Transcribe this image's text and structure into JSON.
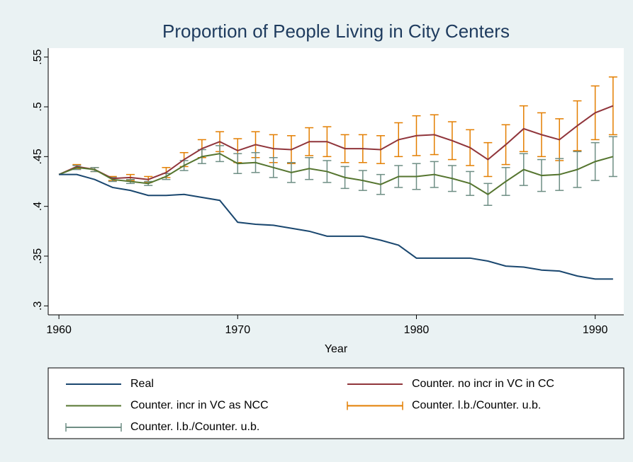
{
  "chart_data": {
    "type": "line",
    "title": "Proportion of People Living in City Centers",
    "x_label": "Year",
    "x": [
      1960,
      1961,
      1962,
      1963,
      1964,
      1965,
      1966,
      1967,
      1968,
      1969,
      1970,
      1971,
      1972,
      1973,
      1974,
      1975,
      1976,
      1977,
      1978,
      1979,
      1980,
      1981,
      1982,
      1983,
      1984,
      1985,
      1986,
      1987,
      1988,
      1989,
      1990,
      1991
    ],
    "xlim": [
      1959.4,
      1991.6
    ],
    "xticks": [
      1960,
      1970,
      1980,
      1990
    ],
    "ylim": [
      0.291,
      0.559
    ],
    "yticks": [
      {
        "value": 0.3,
        "label": ".3"
      },
      {
        "value": 0.35,
        "label": ".35"
      },
      {
        "value": 0.4,
        "label": ".4"
      },
      {
        "value": 0.45,
        "label": ".45"
      },
      {
        "value": 0.5,
        "label": ".5"
      },
      {
        "value": 0.55,
        "label": ".55"
      }
    ],
    "grid": false,
    "legend": "bottom",
    "series": [
      {
        "name": "Real",
        "color": "#1a476f",
        "values": [
          0.432,
          0.432,
          0.427,
          0.419,
          0.416,
          0.411,
          0.411,
          0.412,
          0.409,
          0.406,
          0.384,
          0.382,
          0.381,
          0.378,
          0.375,
          0.37,
          0.37,
          0.37,
          0.366,
          0.361,
          0.348,
          0.348,
          0.348,
          0.348,
          0.345,
          0.34,
          0.339,
          0.336,
          0.335,
          0.33,
          0.327,
          0.327
        ]
      },
      {
        "name": "Counter. no incr in VC in CC",
        "color": "#90353b",
        "values": [
          0.432,
          0.44,
          0.437,
          0.428,
          0.429,
          0.427,
          0.434,
          0.447,
          0.458,
          0.465,
          0.456,
          0.462,
          0.458,
          0.457,
          0.465,
          0.465,
          0.458,
          0.458,
          0.457,
          0.467,
          0.471,
          0.472,
          0.466,
          0.459,
          0.447,
          0.462,
          0.478,
          0.472,
          0.467,
          0.481,
          0.494,
          0.501
        ]
      },
      {
        "name": "Counter. incr in VC as NCC",
        "color": "#55752f",
        "values": [
          0.432,
          0.439,
          0.437,
          0.427,
          0.425,
          0.423,
          0.43,
          0.441,
          0.45,
          0.453,
          0.443,
          0.444,
          0.439,
          0.434,
          0.438,
          0.435,
          0.429,
          0.426,
          0.422,
          0.43,
          0.43,
          0.432,
          0.428,
          0.423,
          0.412,
          0.425,
          0.437,
          0.431,
          0.432,
          0.437,
          0.445,
          0.45
        ]
      },
      {
        "name": "Counter. l.b./Counter. u.b.",
        "color": "#e37e00",
        "type": "rcap",
        "lower": [
          null,
          0.438,
          0.435,
          0.426,
          0.426,
          0.424,
          0.429,
          0.44,
          0.449,
          0.455,
          0.444,
          0.449,
          0.444,
          0.443,
          0.451,
          0.45,
          0.444,
          0.444,
          0.443,
          0.45,
          0.451,
          0.452,
          0.447,
          0.441,
          0.43,
          0.442,
          0.455,
          0.45,
          0.446,
          0.456,
          0.467,
          0.472
        ],
        "upper": [
          null,
          0.442,
          0.439,
          0.43,
          0.432,
          0.43,
          0.439,
          0.454,
          0.467,
          0.475,
          0.468,
          0.475,
          0.472,
          0.471,
          0.479,
          0.48,
          0.472,
          0.472,
          0.471,
          0.484,
          0.491,
          0.492,
          0.485,
          0.477,
          0.464,
          0.482,
          0.501,
          0.494,
          0.488,
          0.506,
          0.521,
          0.53
        ]
      },
      {
        "name": "Counter. l.b./Counter. u.b.",
        "color": "#6e8e84",
        "type": "rcap",
        "lower": [
          null,
          0.437,
          0.435,
          0.425,
          0.423,
          0.421,
          0.427,
          0.436,
          0.443,
          0.445,
          0.433,
          0.434,
          0.429,
          0.424,
          0.427,
          0.424,
          0.418,
          0.416,
          0.412,
          0.419,
          0.417,
          0.419,
          0.415,
          0.411,
          0.401,
          0.411,
          0.421,
          0.415,
          0.416,
          0.419,
          0.426,
          0.43
        ],
        "upper": [
          null,
          0.441,
          0.439,
          0.429,
          0.427,
          0.425,
          0.433,
          0.446,
          0.457,
          0.461,
          0.453,
          0.454,
          0.449,
          0.444,
          0.449,
          0.446,
          0.44,
          0.436,
          0.432,
          0.441,
          0.443,
          0.445,
          0.441,
          0.435,
          0.423,
          0.439,
          0.453,
          0.447,
          0.448,
          0.455,
          0.464,
          0.47
        ]
      }
    ]
  }
}
